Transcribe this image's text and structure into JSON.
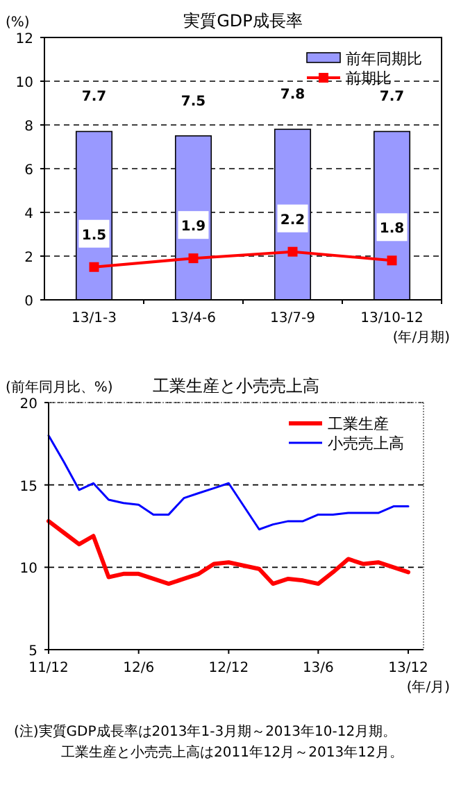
{
  "chart_data": [
    {
      "type": "bar",
      "title": "実質GDP成長率",
      "ylabel": "(%)",
      "xlabel": "(年/月期)",
      "categories": [
        "13/1-3",
        "13/4-6",
        "13/7-9",
        "13/10-12"
      ],
      "ylim": [
        0,
        12
      ],
      "yticks": [
        0,
        2,
        4,
        6,
        8,
        10,
        12
      ],
      "grid": "y",
      "legend": "top right",
      "data_labels": true,
      "series": [
        {
          "name": "前年同期比",
          "color": "#9999ff",
          "values": [
            7.7,
            7.5,
            7.8,
            7.7
          ]
        },
        {
          "name": "前期比",
          "type": "line",
          "color": "#ff0000",
          "marker": "square",
          "values": [
            1.5,
            1.9,
            2.2,
            1.8
          ]
        }
      ]
    },
    {
      "type": "line",
      "title": "工業生産と小売売上高",
      "ylabel": "(前年同月比、%)",
      "xlabel": "(年/月)",
      "x": [
        "2011-12",
        "2012-01",
        "2012-02",
        "2012-03",
        "2012-04",
        "2012-05",
        "2012-06",
        "2012-07",
        "2012-08",
        "2012-09",
        "2012-10",
        "2012-11",
        "2012-12",
        "2013-01",
        "2013-02",
        "2013-03",
        "2013-04",
        "2013-05",
        "2013-06",
        "2013-07",
        "2013-08",
        "2013-09",
        "2013-10",
        "2013-11",
        "2013-12"
      ],
      "xlim": [
        "2011-12",
        "2014-01"
      ],
      "xticks": [
        {
          "value": "2011-12",
          "label": "11/12"
        },
        {
          "value": "2012-06",
          "label": "12/6"
        },
        {
          "value": "2012-12",
          "label": "12/12"
        },
        {
          "value": "2013-06",
          "label": "13/6"
        },
        {
          "value": "2013-12",
          "label": "13/12"
        }
      ],
      "ylim": [
        5,
        20
      ],
      "yticks": [
        5,
        10,
        15,
        20
      ],
      "grid": "y",
      "legend": "top right",
      "annotations": [
        "(注)実質GDP成長率は2013年1-3月期～2013年10-12月期。",
        "工業生産と小売売上高は2011年12月～2013年12月。"
      ],
      "series": [
        {
          "name": "工業生産",
          "color": "#ff0000",
          "values": [
            12.8,
            12.1,
            11.4,
            11.9,
            9.4,
            9.6,
            9.6,
            9.3,
            9.0,
            9.3,
            9.6,
            10.2,
            10.3,
            10.1,
            9.9,
            9.0,
            9.3,
            9.2,
            9.0,
            9.7,
            10.5,
            10.2,
            10.3,
            10.0,
            9.7
          ]
        },
        {
          "name": "小売売上高",
          "color": "#0000ff",
          "values": [
            18.0,
            16.4,
            14.7,
            15.1,
            14.1,
            13.9,
            13.8,
            13.2,
            13.2,
            14.2,
            14.5,
            14.8,
            15.1,
            13.7,
            12.3,
            12.6,
            12.8,
            12.8,
            13.2,
            13.2,
            13.3,
            13.3,
            13.3,
            13.7,
            13.7
          ]
        }
      ]
    }
  ]
}
